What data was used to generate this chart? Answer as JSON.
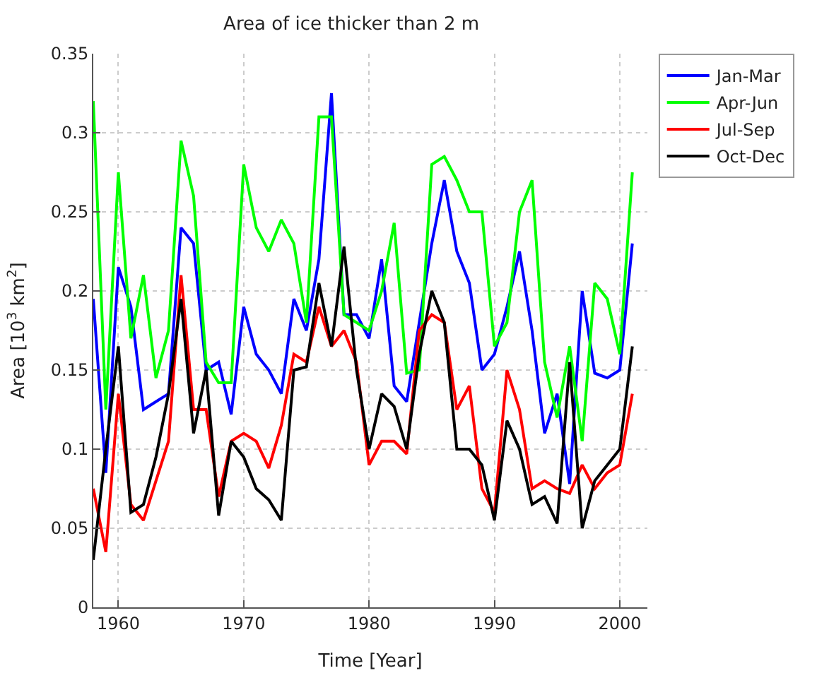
{
  "chart_data": {
    "type": "line",
    "title": "Area of ice thicker than 2 m",
    "xlabel": "Time [Year]",
    "ylabel": "Area [10$^{3}$ km$^{2}$]",
    "x": [
      1958,
      1959,
      1960,
      1961,
      1962,
      1963,
      1964,
      1965,
      1966,
      1967,
      1968,
      1969,
      1970,
      1971,
      1972,
      1973,
      1974,
      1975,
      1976,
      1977,
      1978,
      1979,
      1980,
      1981,
      1982,
      1983,
      1984,
      1985,
      1986,
      1987,
      1988,
      1989,
      1990,
      1991,
      1992,
      1993,
      1994,
      1995,
      1996,
      1997,
      1998,
      1999,
      2000,
      2001
    ],
    "series": [
      {
        "name": "Jan-Mar",
        "color": "#0000ff",
        "values": [
          0.195,
          0.085,
          0.215,
          0.19,
          0.125,
          0.13,
          0.135,
          0.24,
          0.23,
          0.15,
          0.155,
          0.122,
          0.19,
          0.16,
          0.15,
          0.135,
          0.195,
          0.175,
          0.22,
          0.325,
          0.185,
          0.185,
          0.17,
          0.22,
          0.14,
          0.13,
          0.18,
          0.23,
          0.27,
          0.225,
          0.205,
          0.15,
          0.16,
          0.19,
          0.225,
          0.175,
          0.11,
          0.135,
          0.078,
          0.2,
          0.148,
          0.145,
          0.15,
          0.23
        ]
      },
      {
        "name": "Apr-Jun",
        "color": "#00ff00",
        "values": [
          0.32,
          0.125,
          0.275,
          0.17,
          0.21,
          0.145,
          0.175,
          0.295,
          0.26,
          0.155,
          0.142,
          0.142,
          0.28,
          0.24,
          0.225,
          0.245,
          0.23,
          0.18,
          0.31,
          0.31,
          0.185,
          0.18,
          0.175,
          0.2,
          0.243,
          0.148,
          0.15,
          0.28,
          0.285,
          0.27,
          0.25,
          0.25,
          0.165,
          0.18,
          0.25,
          0.27,
          0.155,
          0.12,
          0.165,
          0.105,
          0.205,
          0.195,
          0.16,
          0.275
        ]
      },
      {
        "name": "Jul-Sep",
        "color": "#ff0000",
        "values": [
          0.075,
          0.035,
          0.135,
          0.065,
          0.055,
          0.08,
          0.105,
          0.21,
          0.125,
          0.125,
          0.07,
          0.105,
          0.11,
          0.105,
          0.088,
          0.115,
          0.16,
          0.155,
          0.19,
          0.165,
          0.175,
          0.155,
          0.09,
          0.105,
          0.105,
          0.097,
          0.175,
          0.185,
          0.18,
          0.125,
          0.14,
          0.075,
          0.06,
          0.15,
          0.125,
          0.075,
          0.08,
          0.075,
          0.072,
          0.09,
          0.075,
          0.085,
          0.09,
          0.135
        ]
      },
      {
        "name": "Oct-Dec",
        "color": "#000000",
        "values": [
          0.03,
          0.1,
          0.165,
          0.06,
          0.065,
          0.095,
          0.135,
          0.195,
          0.11,
          0.15,
          0.058,
          0.105,
          0.095,
          0.075,
          0.068,
          0.055,
          0.15,
          0.152,
          0.205,
          0.165,
          0.228,
          0.15,
          0.1,
          0.135,
          0.127,
          0.1,
          0.16,
          0.2,
          0.18,
          0.1,
          0.1,
          0.09,
          0.055,
          0.118,
          0.1,
          0.065,
          0.07,
          0.053,
          0.155,
          0.05,
          0.08,
          0.09,
          0.1,
          0.165
        ]
      }
    ],
    "xlim": [
      1958,
      2002.2
    ],
    "xticks": [
      1960,
      1970,
      1980,
      1990,
      2000
    ],
    "ylim": [
      0,
      0.35
    ],
    "yticks": [
      0,
      0.05,
      0.1,
      0.15,
      0.2,
      0.25,
      0.3,
      0.35
    ],
    "grid": true,
    "legend": "top right",
    "marker": "none",
    "line_style": "solid"
  }
}
